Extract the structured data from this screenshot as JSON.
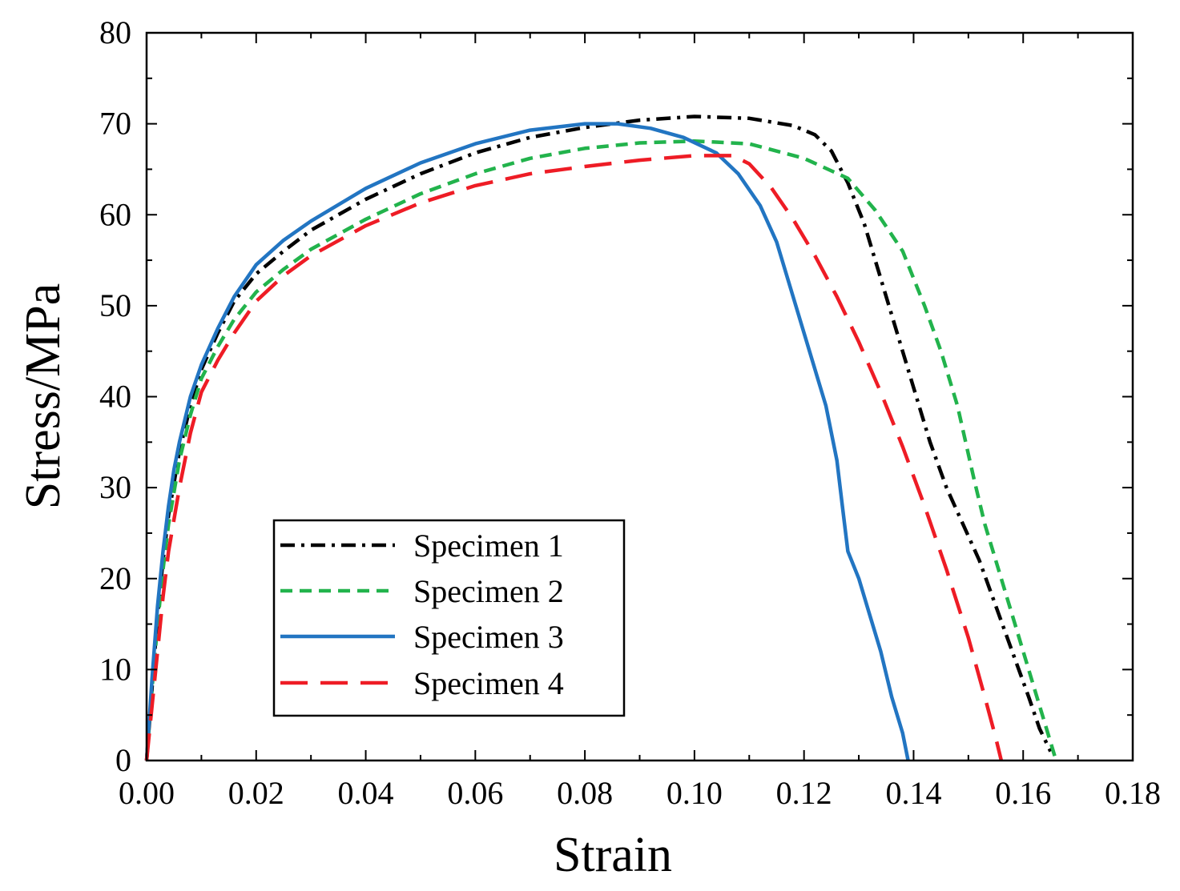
{
  "chart_data": {
    "type": "line",
    "title": "",
    "xlabel": "Strain",
    "ylabel": "Stress/MPa",
    "xlim": [
      0,
      0.18
    ],
    "ylim": [
      0,
      80
    ],
    "xticks": [
      "0.00",
      "0.02",
      "0.04",
      "0.06",
      "0.08",
      "0.10",
      "0.12",
      "0.14",
      "0.16",
      "0.18"
    ],
    "yticks": [
      "0",
      "10",
      "20",
      "30",
      "40",
      "50",
      "60",
      "70",
      "80"
    ],
    "legend_position": "lower-left",
    "series": [
      {
        "name": "Specimen 1",
        "color": "#000000",
        "style": "dashdot",
        "points": [
          [
            0,
            0
          ],
          [
            0.001,
            8
          ],
          [
            0.002,
            16
          ],
          [
            0.003,
            22
          ],
          [
            0.004,
            27
          ],
          [
            0.006,
            34
          ],
          [
            0.008,
            39
          ],
          [
            0.01,
            43
          ],
          [
            0.013,
            47
          ],
          [
            0.016,
            50.5
          ],
          [
            0.02,
            53.5
          ],
          [
            0.025,
            56
          ],
          [
            0.03,
            58.3
          ],
          [
            0.04,
            61.7
          ],
          [
            0.05,
            64.5
          ],
          [
            0.06,
            66.8
          ],
          [
            0.07,
            68.5
          ],
          [
            0.08,
            69.6
          ],
          [
            0.09,
            70.4
          ],
          [
            0.1,
            70.8
          ],
          [
            0.11,
            70.6
          ],
          [
            0.118,
            69.8
          ],
          [
            0.122,
            68.8
          ],
          [
            0.125,
            67
          ],
          [
            0.128,
            63.5
          ],
          [
            0.131,
            59
          ],
          [
            0.134,
            53
          ],
          [
            0.137,
            47
          ],
          [
            0.14,
            41
          ],
          [
            0.143,
            35
          ],
          [
            0.146,
            30
          ],
          [
            0.149,
            26
          ],
          [
            0.152,
            22
          ],
          [
            0.155,
            17
          ],
          [
            0.158,
            12
          ],
          [
            0.161,
            7
          ],
          [
            0.163,
            3.5
          ],
          [
            0.165,
            1
          ]
        ]
      },
      {
        "name": "Specimen 2",
        "color": "#22b34c",
        "style": "dashed",
        "points": [
          [
            0,
            0
          ],
          [
            0.001,
            8
          ],
          [
            0.002,
            15
          ],
          [
            0.003,
            21
          ],
          [
            0.004,
            26
          ],
          [
            0.006,
            33
          ],
          [
            0.008,
            38
          ],
          [
            0.01,
            42
          ],
          [
            0.013,
            45.5
          ],
          [
            0.016,
            48.5
          ],
          [
            0.02,
            51.5
          ],
          [
            0.025,
            54
          ],
          [
            0.03,
            56.2
          ],
          [
            0.04,
            59.5
          ],
          [
            0.05,
            62.3
          ],
          [
            0.06,
            64.5
          ],
          [
            0.07,
            66.2
          ],
          [
            0.08,
            67.3
          ],
          [
            0.09,
            67.9
          ],
          [
            0.1,
            68.1
          ],
          [
            0.11,
            67.8
          ],
          [
            0.12,
            66.2
          ],
          [
            0.128,
            64
          ],
          [
            0.133,
            60.5
          ],
          [
            0.138,
            56
          ],
          [
            0.142,
            50
          ],
          [
            0.145,
            45
          ],
          [
            0.148,
            39
          ],
          [
            0.151,
            31
          ],
          [
            0.153,
            26
          ],
          [
            0.156,
            20
          ],
          [
            0.159,
            14
          ],
          [
            0.162,
            8
          ],
          [
            0.164,
            4
          ],
          [
            0.166,
            0
          ]
        ]
      },
      {
        "name": "Specimen 3",
        "color": "#2275c2",
        "style": "solid",
        "points": [
          [
            0,
            0
          ],
          [
            0.001,
            9
          ],
          [
            0.002,
            17
          ],
          [
            0.003,
            23
          ],
          [
            0.004,
            28
          ],
          [
            0.005,
            32
          ],
          [
            0.006,
            35
          ],
          [
            0.008,
            40
          ],
          [
            0.01,
            43.5
          ],
          [
            0.013,
            47.5
          ],
          [
            0.016,
            51
          ],
          [
            0.02,
            54.5
          ],
          [
            0.025,
            57.2
          ],
          [
            0.03,
            59.3
          ],
          [
            0.04,
            62.9
          ],
          [
            0.05,
            65.7
          ],
          [
            0.06,
            67.8
          ],
          [
            0.07,
            69.3
          ],
          [
            0.08,
            70
          ],
          [
            0.086,
            70
          ],
          [
            0.092,
            69.5
          ],
          [
            0.098,
            68.5
          ],
          [
            0.104,
            66.8
          ],
          [
            0.108,
            64.5
          ],
          [
            0.112,
            61
          ],
          [
            0.115,
            57
          ],
          [
            0.118,
            51
          ],
          [
            0.121,
            45
          ],
          [
            0.124,
            39
          ],
          [
            0.126,
            33
          ],
          [
            0.127,
            28
          ],
          [
            0.128,
            23
          ],
          [
            0.13,
            20
          ],
          [
            0.132,
            16
          ],
          [
            0.134,
            12
          ],
          [
            0.136,
            7
          ],
          [
            0.138,
            3
          ],
          [
            0.139,
            0
          ]
        ]
      },
      {
        "name": "Specimen 4",
        "color": "#ee1c25",
        "style": "longdash",
        "points": [
          [
            0,
            0
          ],
          [
            0.001,
            6
          ],
          [
            0.002,
            12
          ],
          [
            0.003,
            18
          ],
          [
            0.004,
            23
          ],
          [
            0.006,
            30
          ],
          [
            0.008,
            36
          ],
          [
            0.01,
            40.5
          ],
          [
            0.013,
            44
          ],
          [
            0.016,
            47
          ],
          [
            0.02,
            50.5
          ],
          [
            0.025,
            53.3
          ],
          [
            0.03,
            55.5
          ],
          [
            0.04,
            58.8
          ],
          [
            0.05,
            61.3
          ],
          [
            0.06,
            63.2
          ],
          [
            0.07,
            64.5
          ],
          [
            0.08,
            65.3
          ],
          [
            0.09,
            66
          ],
          [
            0.1,
            66.5
          ],
          [
            0.107,
            66.5
          ],
          [
            0.11,
            65.6
          ],
          [
            0.114,
            63
          ],
          [
            0.118,
            59.5
          ],
          [
            0.122,
            55.5
          ],
          [
            0.126,
            51
          ],
          [
            0.13,
            46
          ],
          [
            0.134,
            40.5
          ],
          [
            0.138,
            34.5
          ],
          [
            0.142,
            28
          ],
          [
            0.146,
            21
          ],
          [
            0.15,
            13.5
          ],
          [
            0.153,
            7
          ],
          [
            0.155,
            2.5
          ],
          [
            0.156,
            0
          ]
        ]
      }
    ]
  }
}
